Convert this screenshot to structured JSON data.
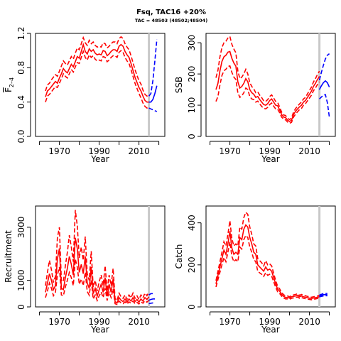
{
  "figure": {
    "title": "Fsq, TAC16 +20%",
    "subtitle": "TAC = 48503 (48502;48504)"
  },
  "colors": {
    "history": "#ff0000",
    "projection": "#0000ff",
    "divider": "#c8c8c8"
  },
  "chart_data": [
    {
      "type": "line",
      "panel": "F",
      "ylabel": "F",
      "ylabel_subscript": "2–4",
      "xlabel": "Year",
      "xlim": [
        1958,
        2023
      ],
      "ylim": [
        0,
        1.2
      ],
      "xticks": [
        1970,
        1990,
        2010
      ],
      "yticks": [
        0.0,
        0.4,
        0.8,
        1.2
      ],
      "ytick_labels": [
        "0.0",
        "0.4",
        "0.8",
        "1.2"
      ],
      "divider_year": 2015,
      "history": {
        "x": [
          1963,
          1964,
          1965,
          1966,
          1967,
          1968,
          1969,
          1970,
          1971,
          1972,
          1973,
          1974,
          1975,
          1976,
          1977,
          1978,
          1979,
          1980,
          1981,
          1982,
          1983,
          1984,
          1985,
          1986,
          1987,
          1988,
          1989,
          1990,
          1991,
          1992,
          1993,
          1994,
          1995,
          1996,
          1997,
          1998,
          1999,
          2000,
          2001,
          2002,
          2003,
          2004,
          2005,
          2006,
          2007,
          2008,
          2009,
          2010,
          2011,
          2012,
          2013,
          2014,
          2015
        ],
        "mid": [
          0.46,
          0.53,
          0.55,
          0.58,
          0.61,
          0.64,
          0.62,
          0.68,
          0.73,
          0.79,
          0.76,
          0.74,
          0.79,
          0.84,
          0.81,
          0.87,
          0.93,
          0.91,
          0.99,
          1.07,
          0.99,
          0.96,
          1.02,
          0.99,
          1.01,
          0.97,
          0.95,
          0.96,
          0.95,
          1.0,
          0.99,
          0.94,
          0.96,
          0.99,
          1.01,
          1.01,
          0.99,
          1.05,
          1.07,
          1.05,
          0.99,
          0.95,
          0.92,
          0.85,
          0.77,
          0.69,
          0.63,
          0.57,
          0.53,
          0.47,
          0.42,
          0.4,
          0.4
        ],
        "lo": [
          0.4,
          0.47,
          0.49,
          0.52,
          0.55,
          0.58,
          0.57,
          0.62,
          0.67,
          0.73,
          0.7,
          0.68,
          0.73,
          0.78,
          0.75,
          0.81,
          0.86,
          0.85,
          0.92,
          0.99,
          0.92,
          0.89,
          0.95,
          0.92,
          0.94,
          0.9,
          0.88,
          0.89,
          0.88,
          0.93,
          0.92,
          0.87,
          0.89,
          0.92,
          0.94,
          0.94,
          0.92,
          0.98,
          1.0,
          0.98,
          0.92,
          0.88,
          0.85,
          0.78,
          0.7,
          0.62,
          0.56,
          0.5,
          0.45,
          0.39,
          0.35,
          0.33,
          0.33
        ],
        "hi": [
          0.53,
          0.6,
          0.62,
          0.66,
          0.69,
          0.72,
          0.7,
          0.76,
          0.82,
          0.88,
          0.85,
          0.83,
          0.88,
          0.93,
          0.9,
          0.97,
          1.03,
          1.01,
          1.08,
          1.15,
          1.09,
          1.06,
          1.12,
          1.08,
          1.1,
          1.06,
          1.04,
          1.05,
          1.04,
          1.09,
          1.08,
          1.03,
          1.05,
          1.08,
          1.1,
          1.1,
          1.08,
          1.14,
          1.16,
          1.14,
          1.08,
          1.04,
          1.01,
          0.94,
          0.86,
          0.78,
          0.71,
          0.65,
          0.61,
          0.54,
          0.49,
          0.47,
          0.47
        ]
      },
      "projection": {
        "x": [
          2015,
          2016,
          2017,
          2018,
          2019
        ],
        "mid": [
          0.4,
          0.4,
          0.43,
          0.5,
          0.59
        ],
        "lo": [
          0.33,
          0.32,
          0.31,
          0.3,
          0.29
        ],
        "hi": [
          0.47,
          0.5,
          0.65,
          0.88,
          1.13
        ]
      }
    },
    {
      "type": "line",
      "panel": "SSB",
      "ylabel": "SSB",
      "xlabel": "Year",
      "xlim": [
        1958,
        2023
      ],
      "ylim": [
        0,
        330
      ],
      "xticks": [
        1970,
        1990,
        2010
      ],
      "yticks": [
        0,
        100,
        200,
        300
      ],
      "ytick_labels": [
        "0",
        "100",
        "200",
        "300"
      ],
      "divider_year": 2015,
      "history": {
        "x": [
          1963,
          1964,
          1965,
          1966,
          1967,
          1968,
          1969,
          1970,
          1971,
          1972,
          1973,
          1974,
          1975,
          1976,
          1977,
          1978,
          1979,
          1980,
          1981,
          1982,
          1983,
          1984,
          1985,
          1986,
          1987,
          1988,
          1989,
          1990,
          1991,
          1992,
          1993,
          1994,
          1995,
          1996,
          1997,
          1998,
          1999,
          2000,
          2001,
          2002,
          2003,
          2004,
          2005,
          2006,
          2007,
          2008,
          2009,
          2010,
          2011,
          2012,
          2013,
          2014,
          2015
        ],
        "mid": [
          150,
          170,
          210,
          240,
          255,
          260,
          270,
          272,
          250,
          235,
          225,
          175,
          155,
          160,
          170,
          185,
          175,
          150,
          140,
          135,
          125,
          128,
          118,
          110,
          102,
          100,
          105,
          115,
          120,
          110,
          100,
          98,
          85,
          70,
          62,
          60,
          52,
          48,
          52,
          70,
          80,
          88,
          95,
          100,
          110,
          115,
          125,
          135,
          145,
          160,
          170,
          182,
          192
        ],
        "lo": [
          112,
          128,
          165,
          195,
          210,
          215,
          224,
          226,
          205,
          190,
          182,
          140,
          125,
          130,
          140,
          155,
          150,
          128,
          120,
          118,
          110,
          113,
          104,
          96,
          90,
          88,
          93,
          102,
          107,
          97,
          88,
          87,
          76,
          62,
          55,
          53,
          46,
          42,
          45,
          62,
          71,
          79,
          86,
          90,
          100,
          105,
          114,
          123,
          132,
          146,
          155,
          166,
          175
        ],
        "hi": [
          188,
          212,
          255,
          285,
          300,
          305,
          315,
          320,
          295,
          280,
          268,
          210,
          185,
          190,
          200,
          215,
          200,
          172,
          160,
          152,
          140,
          143,
          132,
          124,
          114,
          112,
          118,
          128,
          133,
          123,
          112,
          109,
          94,
          78,
          69,
          67,
          58,
          54,
          59,
          78,
          89,
          97,
          104,
          110,
          120,
          125,
          136,
          147,
          158,
          174,
          185,
          198,
          209
        ]
      },
      "projection": {
        "x": [
          2015,
          2016,
          2017,
          2018,
          2019,
          2020
        ],
        "mid": [
          150,
          162,
          172,
          178,
          172,
          158
        ],
        "lo": [
          120,
          126,
          132,
          134,
          108,
          62
        ],
        "hi": [
          180,
          205,
          228,
          248,
          260,
          265
        ]
      }
    },
    {
      "type": "line",
      "panel": "Recruitment",
      "ylabel": "Recruitment",
      "xlabel": "Year",
      "xlim": [
        1958,
        2023
      ],
      "ylim": [
        0,
        3800
      ],
      "xticks": [
        1970,
        1990,
        2010
      ],
      "yticks": [
        0,
        1000,
        3000
      ],
      "ytick_labels": [
        "0",
        "1000",
        "3000"
      ],
      "divider_year": 2015,
      "history": {
        "x": [
          1963,
          1964,
          1965,
          1966,
          1967,
          1968,
          1969,
          1970,
          1971,
          1972,
          1973,
          1974,
          1975,
          1976,
          1977,
          1978,
          1979,
          1980,
          1981,
          1982,
          1983,
          1984,
          1985,
          1986,
          1987,
          1988,
          1989,
          1990,
          1991,
          1992,
          1993,
          1994,
          1995,
          1996,
          1997,
          1998,
          1999,
          2000,
          2001,
          2002,
          2003,
          2004,
          2005,
          2006,
          2007,
          2008,
          2009,
          2010,
          2011,
          2012,
          2013,
          2014,
          2015
        ],
        "mid": [
          550,
          900,
          1250,
          1000,
          650,
          800,
          1800,
          2200,
          700,
          650,
          1100,
          1450,
          1900,
          1600,
          1200,
          2600,
          2200,
          1300,
          1600,
          1250,
          1900,
          900,
          700,
          1500,
          500,
          700,
          400,
          650,
          850,
          550,
          1100,
          400,
          850,
          550,
          1050,
          200,
          150,
          350,
          250,
          200,
          300,
          180,
          300,
          220,
          350,
          200,
          280,
          180,
          300,
          220,
          350,
          280,
          380
        ],
        "lo": [
          350,
          600,
          900,
          700,
          420,
          550,
          1200,
          1500,
          450,
          420,
          750,
          1000,
          1300,
          1100,
          800,
          1800,
          1500,
          850,
          1050,
          800,
          1300,
          580,
          440,
          1000,
          300,
          450,
          240,
          420,
          560,
          350,
          700,
          240,
          550,
          350,
          680,
          120,
          90,
          220,
          150,
          120,
          190,
          110,
          190,
          140,
          220,
          120,
          170,
          110,
          190,
          140,
          230,
          180,
          250
        ],
        "hi": [
          800,
          1300,
          1750,
          1400,
          920,
          1150,
          2600,
          3000,
          1000,
          950,
          1550,
          2050,
          2700,
          2250,
          1700,
          3650,
          3050,
          1850,
          2250,
          1750,
          2650,
          1250,
          1000,
          2100,
          750,
          1000,
          600,
          950,
          1200,
          800,
          1550,
          600,
          1200,
          800,
          1450,
          320,
          240,
          520,
          380,
          320,
          450,
          280,
          450,
          340,
          520,
          320,
          420,
          280,
          450,
          340,
          520,
          420,
          560
        ]
      },
      "projection": {
        "x": [
          2015,
          2016,
          2017,
          2018
        ],
        "mid": [
          250,
          280,
          300,
          300
        ],
        "lo": [
          120,
          140,
          150,
          150
        ],
        "hi": [
          450,
          500,
          500,
          500
        ]
      }
    },
    {
      "type": "line",
      "panel": "Catch",
      "ylabel": "Catch",
      "xlabel": "Year",
      "xlim": [
        1958,
        2023
      ],
      "ylim": [
        0,
        480
      ],
      "xticks": [
        1970,
        1990,
        2010
      ],
      "yticks": [
        0,
        200,
        400
      ],
      "ytick_labels": [
        "0",
        "200",
        "400"
      ],
      "divider_year": 2015,
      "history": {
        "x": [
          1963,
          1964,
          1965,
          1966,
          1967,
          1968,
          1969,
          1970,
          1971,
          1972,
          1973,
          1974,
          1975,
          1976,
          1977,
          1978,
          1979,
          1980,
          1981,
          1982,
          1983,
          1984,
          1985,
          1986,
          1987,
          1988,
          1989,
          1990,
          1991,
          1992,
          1993,
          1994,
          1995,
          1996,
          1997,
          1998,
          1999,
          2000,
          2001,
          2002,
          2003,
          2004,
          2005,
          2006,
          2007,
          2008,
          2009,
          2010,
          2011,
          2012,
          2013,
          2014,
          2015
        ],
        "mid": [
          110,
          150,
          190,
          230,
          270,
          250,
          300,
          360,
          280,
          250,
          260,
          250,
          330,
          320,
          370,
          390,
          380,
          330,
          300,
          260,
          250,
          200,
          190,
          180,
          170,
          190,
          175,
          180,
          170,
          140,
          110,
          85,
          75,
          60,
          50,
          45,
          45,
          42,
          48,
          50,
          52,
          55,
          48,
          52,
          48,
          46,
          44,
          42,
          40,
          42,
          44,
          46,
          48
        ],
        "lo": [
          95,
          130,
          165,
          200,
          235,
          215,
          260,
          310,
          240,
          215,
          225,
          215,
          285,
          275,
          320,
          340,
          330,
          285,
          260,
          225,
          215,
          170,
          162,
          155,
          145,
          163,
          150,
          155,
          146,
          120,
          94,
          72,
          64,
          51,
          42,
          38,
          38,
          36,
          41,
          43,
          45,
          47,
          41,
          45,
          41,
          39,
          37,
          36,
          34,
          36,
          38,
          40,
          42
        ],
        "hi": [
          125,
          170,
          215,
          260,
          310,
          290,
          345,
          410,
          325,
          290,
          300,
          290,
          380,
          370,
          425,
          450,
          440,
          380,
          345,
          300,
          290,
          230,
          220,
          210,
          195,
          220,
          200,
          205,
          195,
          160,
          126,
          98,
          86,
          69,
          58,
          52,
          52,
          48,
          55,
          57,
          59,
          63,
          55,
          59,
          55,
          53,
          50,
          48,
          46,
          48,
          50,
          52,
          55
        ]
      },
      "projection": {
        "x": [
          2015,
          2016,
          2017,
          2018,
          2019
        ],
        "mid": [
          52,
          55,
          58,
          58,
          58
        ],
        "lo": [
          48,
          50,
          52,
          53,
          53
        ],
        "hi": [
          56,
          60,
          64,
          64,
          64
        ]
      }
    }
  ]
}
